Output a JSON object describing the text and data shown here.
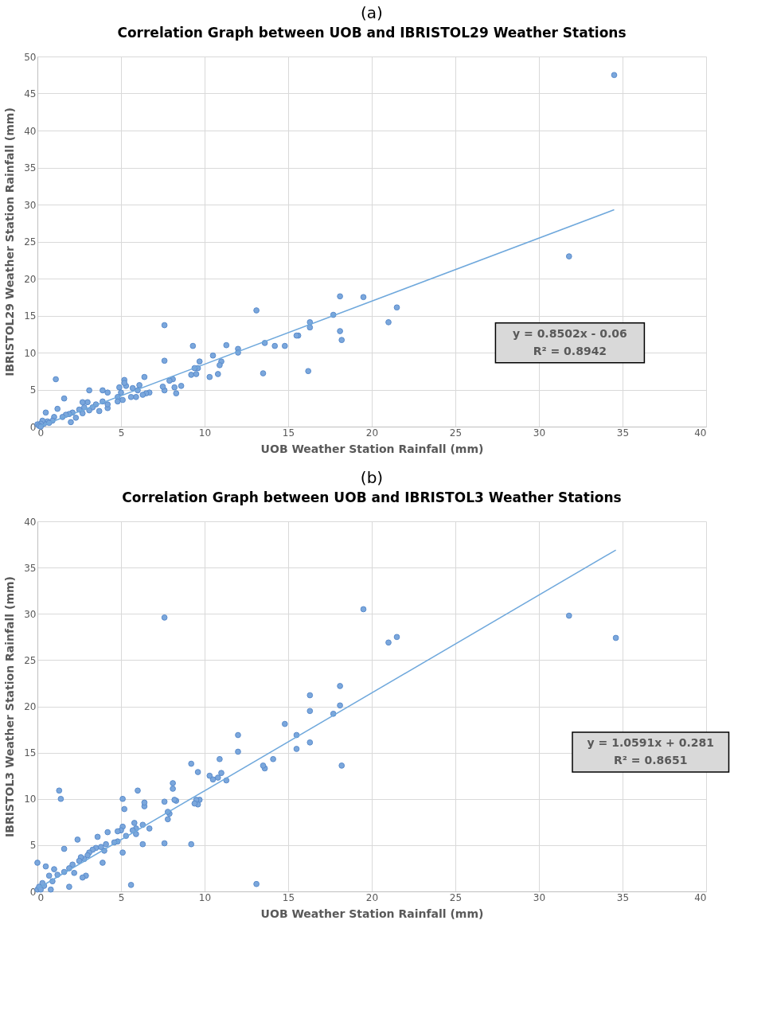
{
  "chart_data": [
    {
      "type": "scatter",
      "title": "Correlation Graph between UOB and IBRISTOL29 Weather Stations",
      "xlabel": "UOB Weather Station Rainfall (mm)",
      "ylabel": "IBRISTOL29 Weather Station Rainfall (mm)",
      "annotations": [
        "(a)",
        "y = 0.8502x - 0.06",
        "R² = 0.8942"
      ],
      "xlim": [
        0,
        40
      ],
      "xticks": [
        0,
        5,
        10,
        15,
        20,
        25,
        30,
        35,
        40
      ],
      "ylim": [
        0,
        50
      ],
      "yticks": [
        0,
        5,
        10,
        15,
        20,
        25,
        30,
        35,
        40,
        45,
        50
      ],
      "grid": true,
      "marker": "circle",
      "series": [
        {
          "color": "#7ba7dc",
          "x": [
            34.5,
            31.8,
            21.5,
            21,
            19.5,
            18.1,
            18.1,
            18.2,
            17.7,
            16.3,
            16.3,
            16.2,
            15.6,
            15.5,
            14.8,
            14.2,
            13.6,
            13.5,
            13.1,
            12,
            12,
            11.3,
            11,
            10.9,
            10.8,
            10.5,
            10.3,
            9.7,
            9.6,
            9.4,
            9.3,
            9.2,
            9.5,
            8.6,
            8.3,
            8.2,
            8.1,
            7.9,
            7.6,
            7.6,
            7.6,
            7.5,
            6.7,
            6.5,
            6.4,
            6.3,
            6.1,
            6,
            5.9,
            5.7,
            5.6,
            5.3,
            5.2,
            5.2,
            5.1,
            5,
            4.9,
            4.8,
            4.8,
            4.2,
            4.2,
            4.2,
            3.9,
            3.9,
            3.7,
            3.5,
            3.3,
            3.1,
            3.1,
            3,
            2.8,
            2.7,
            2.7,
            2.5,
            2.3,
            2.1,
            2,
            1.9,
            1.6,
            1.7,
            1.5,
            1.2,
            1.1,
            1,
            0.9,
            0.5,
            0.6,
            0.4,
            0.3,
            0.2,
            0,
            0.1,
            0.2,
            0.7
          ],
          "values": [
            47.5,
            23,
            16.1,
            14.1,
            17.5,
            17.6,
            12.9,
            11.7,
            15.1,
            14.1,
            13.4,
            7.5,
            12.3,
            12.3,
            10.9,
            10.9,
            11.3,
            7.2,
            15.7,
            10.5,
            10,
            11,
            8.8,
            8.3,
            7.1,
            9.6,
            6.7,
            8.8,
            7.9,
            7.9,
            10.9,
            7,
            7.1,
            5.5,
            4.5,
            5.3,
            6.4,
            6.2,
            4.9,
            13.7,
            8.9,
            5.4,
            4.6,
            4.5,
            6.7,
            4.3,
            5.6,
            4.9,
            4,
            5.2,
            4,
            5.5,
            6.3,
            5.9,
            3.6,
            4.6,
            5.3,
            4,
            3.4,
            4.6,
            2.5,
            3,
            3.4,
            4.9,
            2.1,
            3,
            2.6,
            4.9,
            2.2,
            3.3,
            2.6,
            3.3,
            1.8,
            2.3,
            1.2,
            1.9,
            0.6,
            1.7,
            3.8,
            1.6,
            1.3,
            2.4,
            6.4,
            1.3,
            0.8,
            1.9,
            0.7,
            0.4,
            0.8,
            0.4,
            0.3,
            0.1,
            0,
            0.5
          ]
        },
        {
          "type": "line",
          "color": "#6fa8dc",
          "marker": "none",
          "x": [
            0.1,
            34.5
          ],
          "values": [
            0,
            29.3
          ]
        }
      ]
    },
    {
      "type": "scatter",
      "title": "Correlation Graph between UOB and IBRISTOL3 Weather Stations",
      "xlabel": "UOB Weather Station Rainfall (mm)",
      "ylabel": "IBRISTOL3  Weather Station Rainfall (mm)",
      "annotations": [
        "(b)",
        "y = 1.0591x + 0.281",
        "R² = 0.8651"
      ],
      "xlim": [
        0,
        40
      ],
      "xticks": [
        0,
        5,
        10,
        15,
        20,
        25,
        30,
        35,
        40
      ],
      "ylim": [
        0,
        40
      ],
      "yticks": [
        0,
        5,
        10,
        15,
        20,
        25,
        30,
        35,
        40
      ],
      "grid": true,
      "marker": "circle",
      "series": [
        {
          "color": "#7ba7dc",
          "x": [
            34.6,
            31.8,
            21.5,
            21,
            19.5,
            7.6,
            18.1,
            18.1,
            17.7,
            16.3,
            16.3,
            16.3,
            18.2,
            15.5,
            15.5,
            14.8,
            14.1,
            13.6,
            13.5,
            13.1,
            12,
            12,
            11.3,
            11,
            10.9,
            10.8,
            10.5,
            10.3,
            9.7,
            9.6,
            9.5,
            9.4,
            9.6,
            9.2,
            9.2,
            8.3,
            8.2,
            8.1,
            8.1,
            7.9,
            7.8,
            7.8,
            7.6,
            7.6,
            6.7,
            6.4,
            6.4,
            6.3,
            6.3,
            6,
            5.9,
            5.9,
            5.8,
            5.7,
            5.6,
            5.3,
            5.2,
            5.1,
            5.1,
            5.1,
            5,
            4.8,
            4.8,
            4.6,
            4.2,
            4.1,
            4,
            3.9,
            3.8,
            3.6,
            3.5,
            3.3,
            3.1,
            3,
            2.9,
            2.8,
            2.7,
            2.6,
            2.5,
            2.4,
            2.2,
            2.1,
            1.9,
            1.9,
            1.6,
            1.6,
            1.4,
            1.3,
            1.2,
            1,
            0.9,
            0.8,
            0.7,
            0.5,
            0.4,
            0.3,
            0,
            0,
            0.1,
            0.2
          ],
          "values": [
            27.4,
            29.8,
            27.5,
            26.9,
            30.5,
            29.6,
            22.2,
            20.1,
            19.2,
            21.2,
            19.5,
            16.1,
            13.6,
            16.9,
            15.4,
            18.1,
            14.3,
            13.3,
            13.6,
            0.8,
            16.9,
            15.1,
            12,
            12.8,
            14.3,
            12.3,
            12.1,
            12.5,
            9.9,
            9.4,
            9.9,
            9.5,
            12.9,
            13.8,
            5.1,
            9.8,
            9.9,
            11.7,
            11.1,
            8.4,
            7.8,
            8.6,
            9.7,
            5.2,
            6.8,
            9.2,
            9.6,
            5.1,
            7.2,
            10.9,
            6.2,
            6.8,
            7.4,
            6.6,
            0.7,
            6,
            8.9,
            10,
            7,
            4.2,
            6.6,
            6.5,
            5.4,
            5.3,
            6.4,
            5.1,
            4.4,
            3.1,
            4.8,
            5.9,
            4.7,
            4.5,
            4.2,
            3.9,
            1.7,
            3.5,
            1.5,
            3.7,
            3.3,
            5.6,
            2,
            2.9,
            2.5,
            0.5,
            4.6,
            2.1,
            10,
            10.9,
            1.8,
            2.4,
            1.1,
            0.2,
            1.7,
            2.7,
            0.6,
            0.9,
            3.1,
            0.2,
            0.5,
            0.2
          ]
        },
        {
          "type": "line",
          "color": "#6fa8dc",
          "marker": "none",
          "x": [
            0,
            34.6
          ],
          "values": [
            0.3,
            36.9
          ]
        }
      ]
    }
  ]
}
